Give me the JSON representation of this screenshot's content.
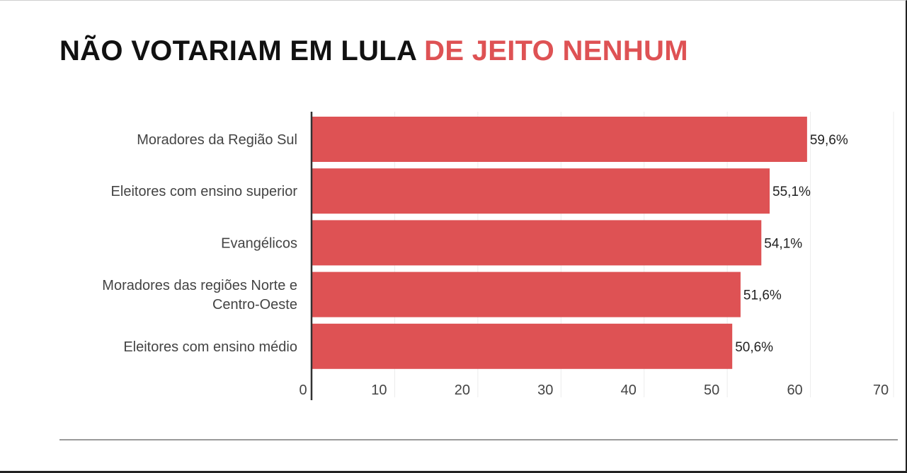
{
  "title": {
    "part1": "NÃO VOTARIAM EM LULA",
    "part2": "DE JEITO NENHUM"
  },
  "colors": {
    "title_dark": "#111111",
    "accent": "#de5254",
    "bar": "#de5254",
    "axis": "#333333",
    "grid": "#ececec",
    "label": "#444444"
  },
  "chart_data": {
    "type": "bar",
    "orientation": "horizontal",
    "title": "NÃO VOTARIAM EM LULA DE JEITO NENHUM",
    "categories": [
      [
        "Moradores da Região Sul"
      ],
      [
        "Eleitores com ensino superior"
      ],
      [
        "Evangélicos"
      ],
      [
        "Moradores das regiões Norte e",
        "Centro-Oeste"
      ],
      [
        "Eleitores com ensino médio"
      ]
    ],
    "values": [
      59.6,
      55.1,
      54.1,
      51.6,
      50.6
    ],
    "value_labels": [
      "59,6%",
      "55,1%",
      "54,1%",
      "51,6%",
      "50,6%"
    ],
    "xlim": [
      0,
      70
    ],
    "xticks": [
      0,
      10,
      20,
      30,
      40,
      50,
      60,
      70
    ],
    "xtick_labels": [
      "0",
      "10",
      "20",
      "30",
      "40",
      "50",
      "60",
      "70"
    ],
    "grid": true,
    "legend": "none"
  }
}
